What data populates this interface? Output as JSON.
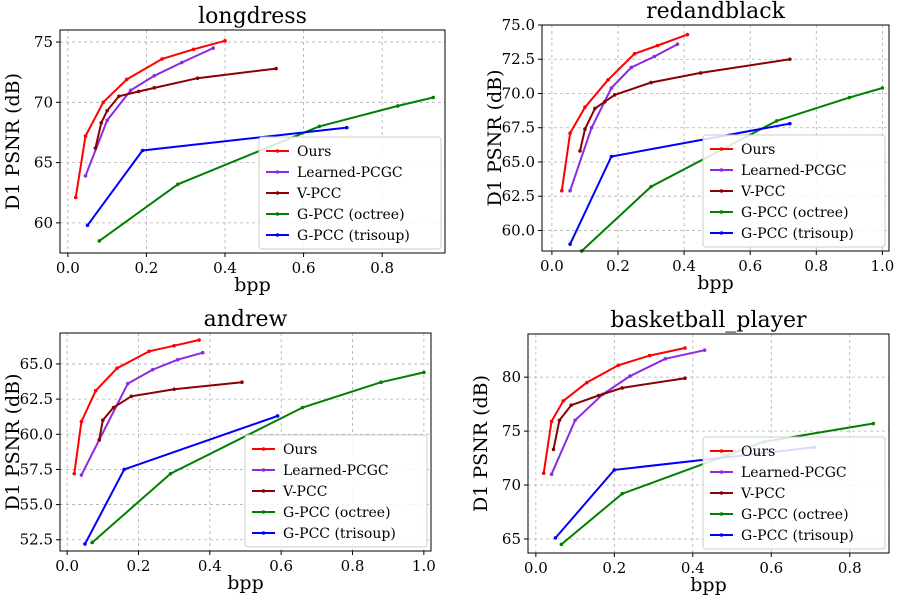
{
  "chart_data": [
    {
      "type": "line",
      "title": "longdress",
      "xlabel": "bpp",
      "ylabel": "D1 PSNR (dB)",
      "xlim": [
        -0.02,
        0.96
      ],
      "ylim": [
        57.5,
        76
      ],
      "xticks": [
        0.0,
        0.2,
        0.4,
        0.6,
        0.8
      ],
      "xtick_labels": [
        "0.0",
        "0.2",
        "0.4",
        "0.6",
        "0.8"
      ],
      "yticks": [
        60,
        65,
        70,
        75
      ],
      "ytick_labels": [
        "60",
        "65",
        "70",
        "75"
      ],
      "grid": true,
      "legend": "lower-right",
      "series": [
        {
          "name": "Ours",
          "color": "#ff0000",
          "x": [
            0.02,
            0.045,
            0.09,
            0.15,
            0.24,
            0.32,
            0.4
          ],
          "y": [
            62.1,
            67.2,
            70.0,
            71.9,
            73.6,
            74.4,
            75.1
          ]
        },
        {
          "name": "Learned-PCGC",
          "color": "#8a2be2",
          "x": [
            0.045,
            0.1,
            0.16,
            0.22,
            0.29,
            0.37
          ],
          "y": [
            63.9,
            68.5,
            71.0,
            72.2,
            73.3,
            74.5
          ]
        },
        {
          "name": "V-PCC",
          "color": "#8b0000",
          "x": [
            0.07,
            0.085,
            0.1,
            0.13,
            0.18,
            0.22,
            0.33,
            0.53
          ],
          "y": [
            66.2,
            68.3,
            69.3,
            70.5,
            70.9,
            71.2,
            72.0,
            72.8
          ]
        },
        {
          "name": "G-PCC (octree)",
          "color": "#008000",
          "x": [
            0.08,
            0.28,
            0.64,
            0.84,
            0.93
          ],
          "y": [
            58.5,
            63.2,
            68.0,
            69.7,
            70.4
          ]
        },
        {
          "name": "G-PCC (trisoup)",
          "color": "#0000ff",
          "x": [
            0.05,
            0.19,
            0.71
          ],
          "y": [
            59.8,
            66.0,
            67.9
          ]
        }
      ]
    },
    {
      "type": "line",
      "title": "redandblack",
      "xlabel": "bpp",
      "ylabel": "D1 PSNR (dB)",
      "xlim": [
        -0.03,
        1.02
      ],
      "ylim": [
        58.5,
        75
      ],
      "xticks": [
        0.0,
        0.2,
        0.4,
        0.6,
        0.8,
        1.0
      ],
      "xtick_labels": [
        "0.0",
        "0.2",
        "0.4",
        "0.6",
        "0.8",
        "1.0"
      ],
      "yticks": [
        60.0,
        62.5,
        65.0,
        67.5,
        70.0,
        72.5,
        75.0
      ],
      "ytick_labels": [
        "60.0",
        "62.5",
        "65.0",
        "67.5",
        "70.0",
        "72.5",
        "75.0"
      ],
      "grid": true,
      "legend": "lower-right",
      "series": [
        {
          "name": "Ours",
          "color": "#ff0000",
          "x": [
            0.03,
            0.055,
            0.1,
            0.17,
            0.25,
            0.32,
            0.41
          ],
          "y": [
            62.9,
            67.1,
            69.0,
            71.0,
            72.9,
            73.5,
            74.3
          ]
        },
        {
          "name": "Learned-PCGC",
          "color": "#8a2be2",
          "x": [
            0.055,
            0.12,
            0.18,
            0.24,
            0.31,
            0.38
          ],
          "y": [
            62.9,
            67.5,
            70.4,
            71.9,
            72.7,
            73.6
          ]
        },
        {
          "name": "V-PCC",
          "color": "#8b0000",
          "x": [
            0.085,
            0.1,
            0.13,
            0.16,
            0.19,
            0.3,
            0.45,
            0.72
          ],
          "y": [
            65.8,
            67.4,
            68.9,
            69.4,
            69.9,
            70.8,
            71.5,
            72.5
          ]
        },
        {
          "name": "G-PCC (octree)",
          "color": "#008000",
          "x": [
            0.09,
            0.3,
            0.68,
            0.9,
            1.0
          ],
          "y": [
            58.5,
            63.2,
            68.0,
            69.7,
            70.4
          ]
        },
        {
          "name": "G-PCC (trisoup)",
          "color": "#0000ff",
          "x": [
            0.055,
            0.18,
            0.72
          ],
          "y": [
            59.0,
            65.4,
            67.8
          ]
        }
      ]
    },
    {
      "type": "line",
      "title": "andrew",
      "xlabel": "bpp",
      "ylabel": "D1 PSNR (dB)",
      "xlim": [
        -0.02,
        1.02
      ],
      "ylim": [
        51.7,
        67.2
      ],
      "xticks": [
        0.0,
        0.2,
        0.4,
        0.6,
        0.8,
        1.0
      ],
      "xtick_labels": [
        "0.0",
        "0.2",
        "0.4",
        "0.6",
        "0.8",
        "1.0"
      ],
      "yticks": [
        52.5,
        55.0,
        57.5,
        60.0,
        62.5,
        65.0
      ],
      "ytick_labels": [
        "52.5",
        "55.0",
        "57.5",
        "60.0",
        "62.5",
        "65.0"
      ],
      "grid": true,
      "legend": "lower-right",
      "series": [
        {
          "name": "Ours",
          "color": "#ff0000",
          "x": [
            0.02,
            0.04,
            0.08,
            0.14,
            0.23,
            0.3,
            0.37
          ],
          "y": [
            57.2,
            60.9,
            63.1,
            64.7,
            65.9,
            66.3,
            66.7
          ]
        },
        {
          "name": "Learned-PCGC",
          "color": "#8a2be2",
          "x": [
            0.04,
            0.09,
            0.17,
            0.24,
            0.31,
            0.38
          ],
          "y": [
            57.1,
            59.6,
            63.6,
            64.6,
            65.3,
            65.8
          ]
        },
        {
          "name": "V-PCC",
          "color": "#8b0000",
          "x": [
            0.09,
            0.1,
            0.13,
            0.18,
            0.3,
            0.49
          ],
          "y": [
            59.6,
            61.0,
            61.9,
            62.7,
            63.2,
            63.7
          ]
        },
        {
          "name": "G-PCC (octree)",
          "color": "#008000",
          "x": [
            0.07,
            0.29,
            0.66,
            0.88,
            1.0
          ],
          "y": [
            52.3,
            57.2,
            61.9,
            63.7,
            64.4
          ]
        },
        {
          "name": "G-PCC (trisoup)",
          "color": "#0000ff",
          "x": [
            0.05,
            0.16,
            0.59
          ],
          "y": [
            52.2,
            57.5,
            61.3
          ]
        }
      ]
    },
    {
      "type": "line",
      "title": "basketball_player",
      "xlabel": "bpp",
      "ylabel": "D1 PSNR (dB)",
      "xlim": [
        -0.02,
        0.9
      ],
      "ylim": [
        63.7,
        84
      ],
      "xticks": [
        0.0,
        0.2,
        0.4,
        0.6,
        0.8
      ],
      "xtick_labels": [
        "0.0",
        "0.2",
        "0.4",
        "0.6",
        "0.8"
      ],
      "yticks": [
        65,
        70,
        75,
        80
      ],
      "ytick_labels": [
        "65",
        "70",
        "75",
        "80"
      ],
      "grid": true,
      "legend": "lower-right",
      "series": [
        {
          "name": "Ours",
          "color": "#ff0000",
          "x": [
            0.02,
            0.04,
            0.07,
            0.13,
            0.21,
            0.29,
            0.38
          ],
          "y": [
            71.1,
            75.9,
            77.8,
            79.5,
            81.1,
            82.0,
            82.7
          ]
        },
        {
          "name": "Learned-PCGC",
          "color": "#8a2be2",
          "x": [
            0.04,
            0.1,
            0.17,
            0.24,
            0.33,
            0.43
          ],
          "y": [
            71.0,
            76.0,
            78.4,
            80.1,
            81.7,
            82.5
          ]
        },
        {
          "name": "V-PCC",
          "color": "#8b0000",
          "x": [
            0.045,
            0.06,
            0.09,
            0.16,
            0.22,
            0.38
          ],
          "y": [
            73.3,
            76.0,
            77.4,
            78.3,
            79.0,
            79.9
          ]
        },
        {
          "name": "G-PCC (octree)",
          "color": "#008000",
          "x": [
            0.065,
            0.22,
            0.58,
            0.86
          ],
          "y": [
            64.5,
            69.2,
            74.0,
            75.7
          ]
        },
        {
          "name": "G-PCC (trisoup)",
          "color": "#0000ff",
          "x": [
            0.05,
            0.2,
            0.71
          ],
          "y": [
            65.1,
            71.4,
            73.5
          ]
        }
      ]
    }
  ]
}
